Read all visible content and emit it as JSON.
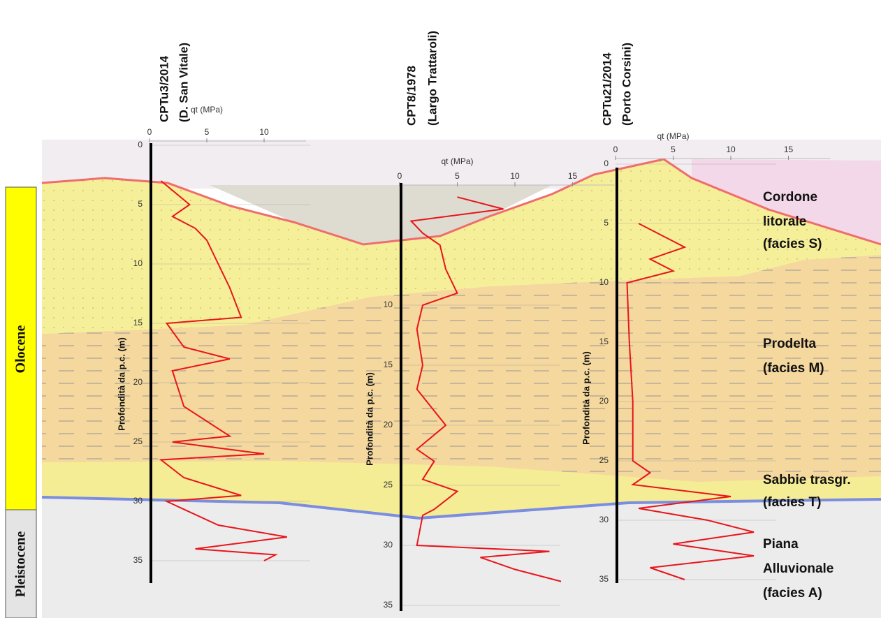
{
  "units_bar": {
    "holocene": "Olocene",
    "pleistocene": "Pleistocene"
  },
  "facies": {
    "cordone": [
      "Cordone",
      "litorale",
      "(facies S)"
    ],
    "prodelta": [
      "Prodelta",
      "(facies M)"
    ],
    "sabbie": [
      "Sabbie trasgr.",
      "(facies T)"
    ],
    "piana": [
      "Piana",
      "Alluvionale",
      "(facies A)"
    ]
  },
  "logs": [
    {
      "title": [
        "CPTu3/2014",
        "(D. San Vitale)"
      ],
      "qt_label": "qt (MPa)",
      "depth_label": "Profondità da p.c. (m)",
      "qt_ticks": [
        0,
        5,
        10
      ],
      "depth_ticks": [
        0,
        5,
        10,
        15,
        20,
        25,
        30,
        35
      ],
      "profile": {
        "depth": [
          3,
          5,
          6,
          7,
          8,
          10,
          12,
          14.5,
          15,
          17,
          18,
          19,
          22,
          24.5,
          25,
          26,
          26.5,
          28,
          29.5,
          30,
          32,
          33,
          34,
          34.5,
          35
        ],
        "qt": [
          1,
          3.5,
          2,
          4,
          5,
          6,
          7,
          8,
          1.5,
          3,
          7,
          2,
          3,
          7,
          2,
          10,
          1,
          3,
          8,
          1.5,
          6,
          12,
          4,
          11,
          10
        ]
      }
    },
    {
      "title": [
        "CPT8/1978",
        "(Largo Trattaroli)"
      ],
      "qt_label": "qt (MPa)",
      "depth_label": "Profondità da p.c. (m)",
      "qt_ticks": [
        0,
        5,
        10,
        15
      ],
      "depth_ticks": [
        10,
        15,
        20,
        25,
        30,
        35
      ],
      "profile": {
        "depth": [
          1,
          2,
          3,
          4,
          5,
          7,
          9,
          10,
          12,
          15,
          17,
          20,
          22,
          23,
          24.5,
          25.5,
          27,
          27.5,
          30,
          30.5,
          31,
          32,
          33
        ],
        "qt": [
          5,
          9,
          1,
          2,
          3.5,
          4,
          5,
          2,
          1.5,
          2,
          1.5,
          4,
          1.5,
          3,
          2,
          5,
          3,
          2,
          1.5,
          13,
          7,
          10,
          14
        ]
      }
    },
    {
      "title": [
        "CPTu21/2014",
        "(Porto Corsini)"
      ],
      "qt_label": "qt (MPa)",
      "depth_label": "Profondità da p.c. (m)",
      "qt_ticks": [
        0,
        5,
        10,
        15
      ],
      "depth_ticks": [
        0,
        5,
        10,
        15,
        20,
        25,
        30,
        35
      ],
      "profile": {
        "depth": [
          5,
          6,
          7,
          8,
          9,
          10,
          15,
          20,
          25,
          26,
          27,
          28,
          29,
          30,
          31,
          32,
          33,
          34,
          35
        ],
        "qt": [
          2,
          4,
          6,
          3,
          5,
          1,
          1.2,
          1.5,
          1.5,
          3,
          1.5,
          10,
          2,
          8,
          12,
          5,
          12,
          3,
          6
        ]
      }
    }
  ]
}
